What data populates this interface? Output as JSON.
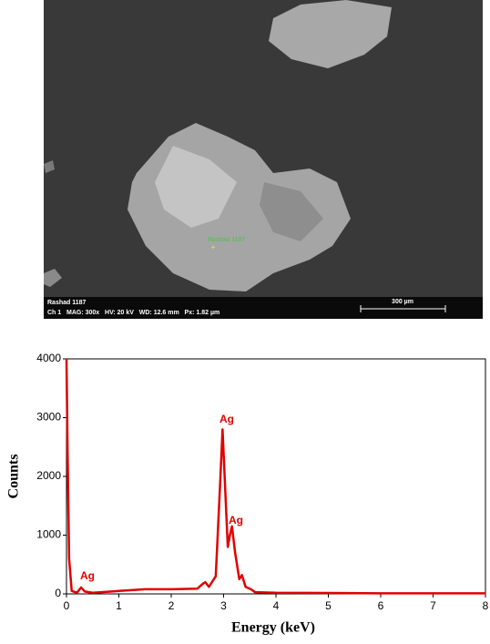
{
  "image": {
    "sample_label": "Rashad 1187",
    "info_line1": "Rashad 1187",
    "info_line2": "Ch 1   MAG: 300x   HV: 20 kV   WD: 12.6 mm   Px: 1.82 µm",
    "scale_label": "300 µm"
  },
  "chart_data": {
    "type": "line",
    "xlabel": "Energy (keV)",
    "ylabel": "Counts",
    "color": "#e00000",
    "x": [
      0,
      0.02,
      0.05,
      0.1,
      0.2,
      0.28,
      0.35,
      0.5,
      1,
      1.5,
      2,
      2.5,
      2.6,
      2.65,
      2.72,
      2.85,
      2.93,
      2.98,
      3.03,
      3.08,
      3.12,
      3.16,
      3.22,
      3.3,
      3.35,
      3.42,
      3.52,
      3.6,
      4,
      5,
      6,
      7,
      8
    ],
    "values": [
      4000,
      2500,
      600,
      50,
      20,
      110,
      40,
      20,
      50,
      80,
      80,
      90,
      170,
      200,
      120,
      300,
      1800,
      2800,
      1800,
      800,
      1000,
      1150,
      700,
      250,
      320,
      120,
      80,
      30,
      20,
      15,
      10,
      10,
      10
    ],
    "xlim": [
      0,
      8
    ],
    "xticks": [
      0,
      1,
      2,
      3,
      4,
      5,
      6,
      7,
      8
    ],
    "ylim": [
      0,
      4000
    ],
    "yticks": [
      0,
      1000,
      2000,
      3000,
      4000
    ],
    "annotations": [
      "Ag",
      "Ag",
      "Ag"
    ]
  }
}
